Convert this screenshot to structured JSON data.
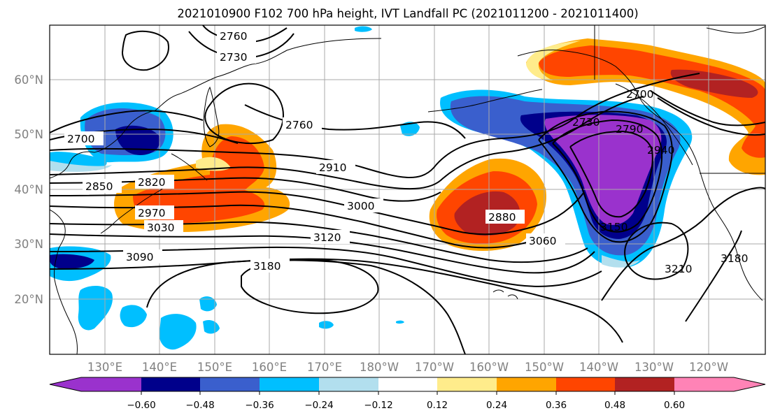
{
  "title": "2021010900 F102 700 hPa height, IVT Landfall PC (2021011200 - 2021011400)",
  "lon_ticks": [
    "130°E",
    "140°E",
    "150°E",
    "160°E",
    "170°E",
    "180°W",
    "170°W",
    "160°W",
    "150°W",
    "140°W",
    "130°W",
    "120°W"
  ],
  "lat_ticks": [
    "60°N",
    "50°N",
    "40°N",
    "30°N",
    "20°N"
  ],
  "colorbar": {
    "tick_labels": [
      "−0.60",
      "−0.48",
      "−0.36",
      "−0.24",
      "−0.12",
      "0.12",
      "0.24",
      "0.36",
      "0.48",
      "0.60"
    ],
    "colors": [
      "#9a32cd",
      "#00008b",
      "#3a5fcd",
      "#00bfff",
      "#b2dfee",
      "#ffffff",
      "#ffec8b",
      "#ffa500",
      "#ff4500",
      "#b22222",
      "#ff83b6"
    ]
  },
  "contour_labels": [
    "2760",
    "2730",
    "2760",
    "2700",
    "2910",
    "2850",
    "2820",
    "3000",
    "2970",
    "3030",
    "2880",
    "3120",
    "3060",
    "3090",
    "3180",
    "2730",
    "2790",
    "2940",
    "3150",
    "3210",
    "3180",
    "2700"
  ]
}
